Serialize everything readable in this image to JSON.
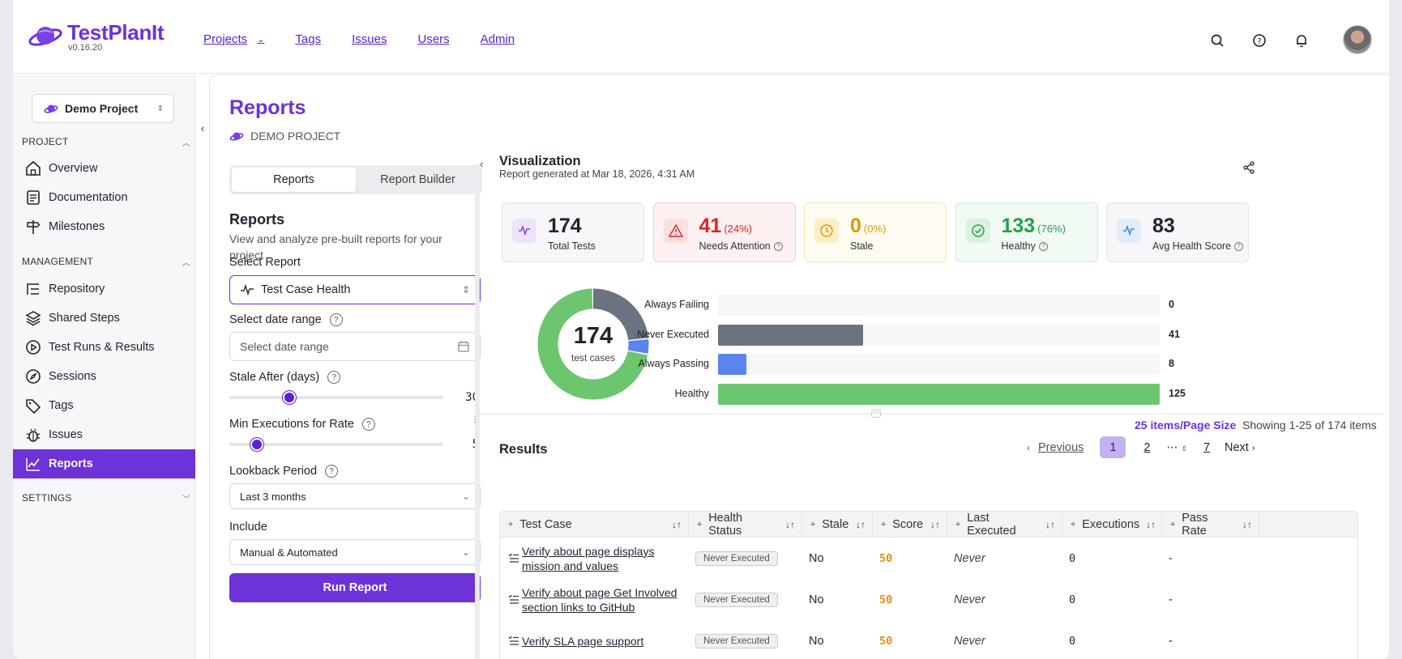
{
  "app": {
    "name": "TestPlanIt",
    "version": "v0.16.20"
  },
  "nav": {
    "projects": "Projects",
    "tags": "Tags",
    "issues": "Issues",
    "users": "Users",
    "admin": "Admin"
  },
  "sidebar": {
    "project_selector": "Demo Project",
    "project_section": "PROJECT",
    "management_section": "MANAGEMENT",
    "settings_section": "SETTINGS",
    "items": [
      {
        "label": "Overview"
      },
      {
        "label": "Documentation"
      },
      {
        "label": "Milestones"
      },
      {
        "label": "Repository"
      },
      {
        "label": "Shared Steps"
      },
      {
        "label": "Test Runs & Results"
      },
      {
        "label": "Sessions"
      },
      {
        "label": "Tags"
      },
      {
        "label": "Issues"
      },
      {
        "label": "Reports"
      }
    ]
  },
  "page": {
    "title": "Reports",
    "project_name": "DEMO PROJECT"
  },
  "config": {
    "tabs": [
      "Reports",
      "Report Builder"
    ],
    "heading": "Reports",
    "description": "View and analyze pre-built reports for your project",
    "select_report_label": "Select Report",
    "select_report_value": "Test Case Health",
    "date_range_label": "Select date range",
    "date_range_placeholder": "Select date range",
    "stale_after_label": "Stale After (days)",
    "stale_after_value": "30",
    "stale_after_fraction": 0.28,
    "min_exec_label": "Min Executions for Rate",
    "min_exec_value": "5",
    "min_exec_fraction": 0.13,
    "lookback_label": "Lookback Period",
    "lookback_value": "Last 3 months",
    "include_label": "Include",
    "include_value": "Manual & Automated",
    "run_button": "Run Report"
  },
  "visualization": {
    "title": "Visualization",
    "generated": "Report generated at Mar 18, 2026, 4:31 AM",
    "cards": [
      {
        "value": "174",
        "pct": "",
        "label": "Total Tests",
        "color": "#1f2330",
        "bg": "#f7f7f9",
        "iconbg": "#ece4fb",
        "icon": "activity-icon"
      },
      {
        "value": "41",
        "pct": "(24%)",
        "label": "Needs Attention",
        "color": "#dc2626",
        "bg": "#fdf1f1",
        "iconbg": "#fbe0e0",
        "icon": "alert-icon"
      },
      {
        "value": "0",
        "pct": "(0%)",
        "label": "Stale",
        "color": "#d99a06",
        "bg": "#fefbf0",
        "iconbg": "#fcefc8",
        "icon": "clock-icon"
      },
      {
        "value": "133",
        "pct": "(76%)",
        "label": "Healthy",
        "color": "#22a04b",
        "bg": "#f1faf3",
        "iconbg": "#daf2e0",
        "icon": "check-circle-icon"
      },
      {
        "value": "83",
        "pct": "",
        "label": "Avg Health Score",
        "color": "#1f2330",
        "bg": "#f7f7f9",
        "iconbg": "#e3ecfb",
        "icon": "activity-icon"
      }
    ],
    "donut_total": "174",
    "donut_sub": "test cases"
  },
  "chart_data": {
    "type": "bar",
    "categories": [
      "Always Failing",
      "Never Executed",
      "Always Passing",
      "Healthy"
    ],
    "values": [
      0,
      41,
      8,
      125
    ],
    "colors": [
      "#ef4444",
      "#6b7280",
      "#5b84ee",
      "#6cc66e"
    ],
    "max": 125
  },
  "results": {
    "title": "Results",
    "page_size": "25 items/Page Size",
    "showing": "Showing 1-25 of 174 items",
    "pager": {
      "previous": "Previous",
      "current": "1",
      "p2": "2",
      "ellipsis": "⋯",
      "last": "7",
      "next": "Next"
    },
    "columns": [
      "Test Case",
      "Health Status",
      "Stale",
      "Score",
      "Last Executed",
      "Executions",
      "Pass Rate"
    ],
    "rows": [
      {
        "name": "Verify about page displays mission and values",
        "status": "Never Executed",
        "stale": "No",
        "score": "50",
        "last": "Never",
        "executions": "0",
        "pass_rate": "-"
      },
      {
        "name": "Verify about page Get Involved section links to GitHub",
        "status": "Never Executed",
        "stale": "No",
        "score": "50",
        "last": "Never",
        "executions": "0",
        "pass_rate": "-"
      },
      {
        "name": "Verify SLA page support",
        "status": "Never Executed",
        "stale": "No",
        "score": "50",
        "last": "Never",
        "executions": "0",
        "pass_rate": "-"
      }
    ]
  }
}
